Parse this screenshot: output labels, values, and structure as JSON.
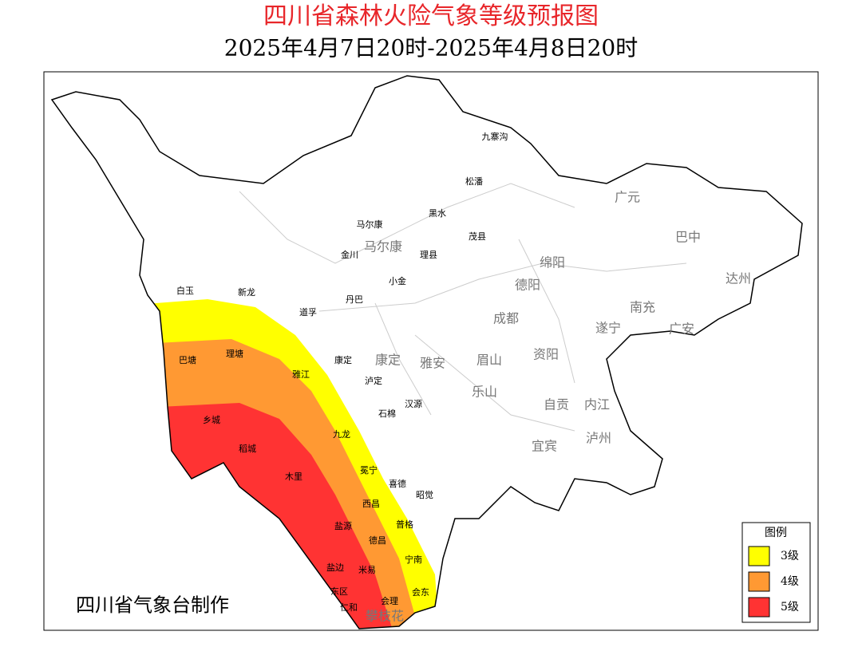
{
  "header": {
    "title": "四川省森林火险气象等级预报图",
    "subtitle": "2025年4月7日20时-2025年4月8日20时"
  },
  "map": {
    "city_labels": [
      "广元",
      "巴中",
      "马尔康",
      "绵阳",
      "德阳",
      "达州",
      "南充",
      "成都",
      "遂宁",
      "广安",
      "康定",
      "雅安",
      "眉山",
      "资阳",
      "乐山",
      "自贡",
      "内江",
      "宜宾",
      "泸州",
      "攀枝花"
    ],
    "county_labels": [
      "九寨沟",
      "松潘",
      "黑水",
      "马尔康",
      "茂县",
      "金川",
      "理县",
      "小金",
      "白玉",
      "新龙",
      "丹巴",
      "道孚",
      "巴塘",
      "理塘",
      "康定",
      "雅江",
      "泸定",
      "汉源",
      "乡城",
      "石棉",
      "稻城",
      "九龙",
      "冕宁",
      "木里",
      "喜德",
      "昭觉",
      "西昌",
      "普格",
      "盐源",
      "德昌",
      "宁南",
      "盐边",
      "米易",
      "会东",
      "会理",
      "东区",
      "仁和"
    ]
  },
  "legend": {
    "title": "图例",
    "items": [
      {
        "label": "3级",
        "color": "#ffff00"
      },
      {
        "label": "4级",
        "color": "#ff9933"
      },
      {
        "label": "5级",
        "color": "#ff3333"
      }
    ]
  },
  "credit": "四川省气象台制作"
}
